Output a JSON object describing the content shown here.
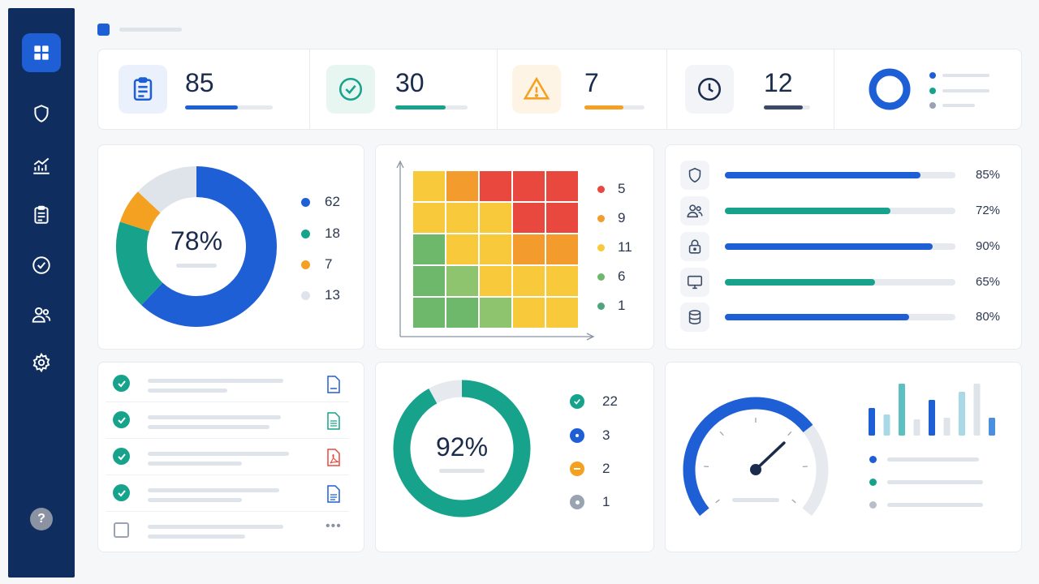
{
  "kpis": [
    {
      "value": "85",
      "icon": "clipboard-icon",
      "color": "#1f5fd6",
      "progress": 0.6
    },
    {
      "value": "30",
      "icon": "check-circle-icon",
      "color": "#17a38b",
      "progress": 0.7
    },
    {
      "value": "7",
      "icon": "warning-icon",
      "color": "#f4a020",
      "progress": 0.65
    },
    {
      "value": "12",
      "icon": "clock-icon",
      "color": "#3a4a66",
      "progress": 0.85
    }
  ],
  "compliance": {
    "center_label": "78%",
    "legend": [
      {
        "value": "62",
        "color": "#1f5fd6"
      },
      {
        "value": "18",
        "color": "#17a38b"
      },
      {
        "value": "7",
        "color": "#f4a020"
      },
      {
        "value": "13",
        "color": "#dfe3ea"
      }
    ]
  },
  "heatmap": {
    "legend": [
      {
        "value": "5",
        "color": "#e8483d"
      },
      {
        "value": "9",
        "color": "#f39b2c"
      },
      {
        "value": "11",
        "color": "#f8c93a"
      },
      {
        "value": "6",
        "color": "#6db86b"
      },
      {
        "value": "1",
        "color": "#4fa47d"
      }
    ]
  },
  "controls": [
    {
      "icon": "shield-icon",
      "label": "85%",
      "value": 0.85,
      "color": "#1f5fd6"
    },
    {
      "icon": "users-icon",
      "label": "72%",
      "value": 0.72,
      "color": "#17a38b"
    },
    {
      "icon": "lock-icon",
      "label": "90%",
      "value": 0.9,
      "color": "#1f5fd6"
    },
    {
      "icon": "monitor-icon",
      "label": "65%",
      "value": 0.65,
      "color": "#17a38b"
    },
    {
      "icon": "database-icon",
      "label": "80%",
      "value": 0.8,
      "color": "#1f5fd6"
    }
  ],
  "tasks": [
    {
      "done": true,
      "file_icon": "doc-icon",
      "file_color": "#1f5fd6"
    },
    {
      "done": true,
      "file_icon": "sheet-icon",
      "file_color": "#17a38b"
    },
    {
      "done": true,
      "file_icon": "pdf-icon",
      "file_color": "#e8483d"
    },
    {
      "done": true,
      "file_icon": "doc-icon",
      "file_color": "#1f5fd6"
    },
    {
      "done": false,
      "more": "•••"
    }
  ],
  "audit": {
    "center_label": "92%",
    "legend": [
      {
        "value": "22",
        "color": "#17a38b",
        "icon": "check-icon"
      },
      {
        "value": "3",
        "color": "#1f5fd6",
        "icon": "dot-icon"
      },
      {
        "value": "2",
        "color": "#f4a020",
        "icon": "minus-icon"
      },
      {
        "value": "1",
        "color": "#9aa3b2",
        "icon": "dot-icon"
      }
    ]
  },
  "help_label": "?"
}
